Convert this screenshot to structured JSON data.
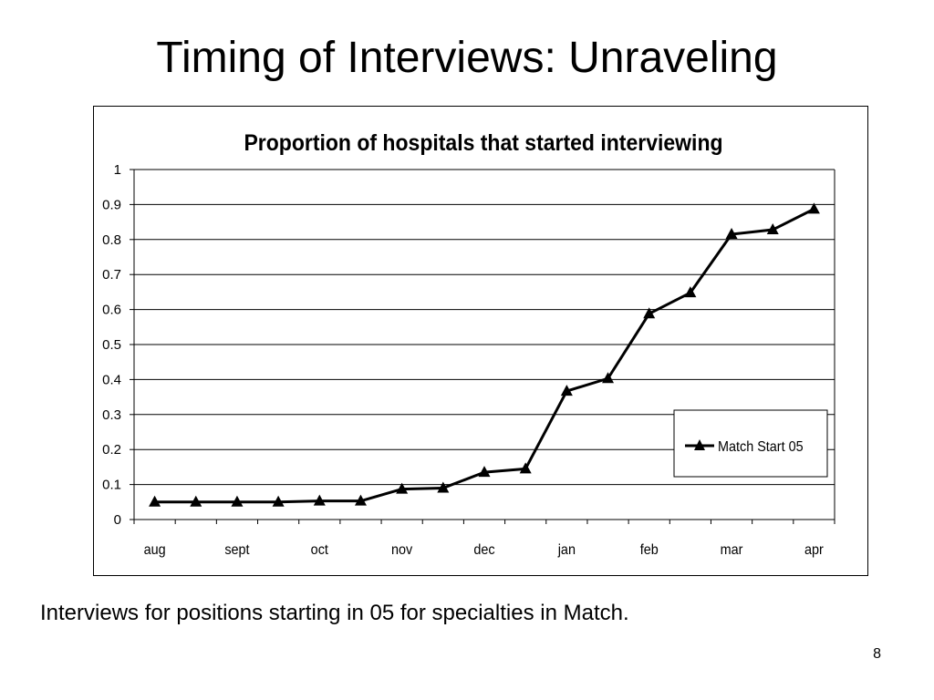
{
  "slide": {
    "title": "Timing of Interviews: Unraveling",
    "caption": "Interviews for positions starting in 05 for specialties in Match.",
    "page_number": "8"
  },
  "colors": {
    "line": "#000000",
    "grid": "#000000",
    "background": "#ffffff"
  },
  "chart_data": {
    "type": "line",
    "title": "Proportion of hospitals that started interviewing",
    "xlabel": "",
    "ylabel": "",
    "x_tick_labels": [
      "aug",
      "sept",
      "oct",
      "nov",
      "dec",
      "jan",
      "feb",
      "mar",
      "apr"
    ],
    "y_tick_labels": [
      "0",
      "0.1",
      "0.2",
      "0.3",
      "0.4",
      "0.5",
      "0.6",
      "0.7",
      "0.8",
      "0.9",
      "1"
    ],
    "ylim": [
      0,
      1
    ],
    "grid": true,
    "legend_position": "lower-right",
    "marker": "triangle",
    "series": [
      {
        "name": "Match Start 05",
        "values": [
          0.05,
          0.05,
          0.05,
          0.05,
          0.053,
          0.053,
          0.087,
          0.09,
          0.135,
          0.145,
          0.367,
          0.403,
          0.588,
          0.648,
          0.815,
          0.828,
          0.887
        ]
      }
    ]
  }
}
